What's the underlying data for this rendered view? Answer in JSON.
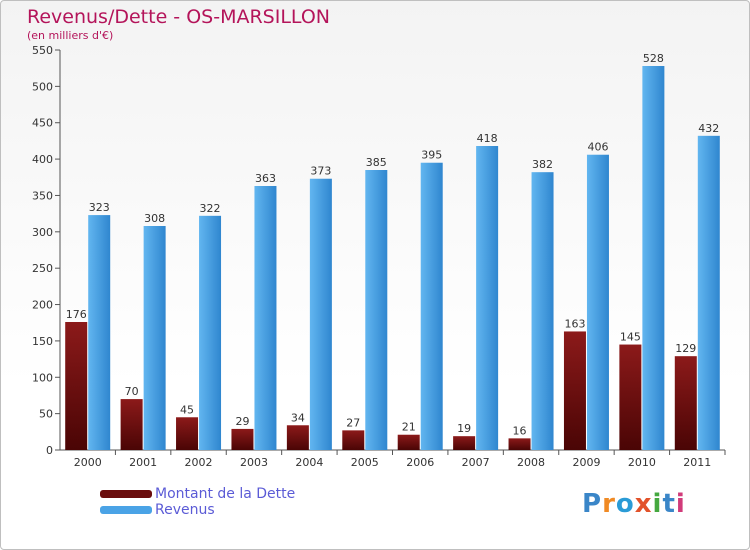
{
  "title": "Revenus/Dette - OS-MARSILLON",
  "subtitle": "(en milliers d'€)",
  "logo": {
    "text": "Proxiti",
    "colors": [
      "#3a86c8",
      "#f08a24",
      "#2a9bd6",
      "#e2522a",
      "#45a83f",
      "#3a86c8",
      "#d13b7a"
    ]
  },
  "legend": {
    "items": [
      {
        "label": "Montant de la Dette",
        "color": "#7a1010"
      },
      {
        "label": "Revenus",
        "color": "#4aa3e6"
      }
    ]
  },
  "chart_data": {
    "type": "bar",
    "categories": [
      "2000",
      "2001",
      "2002",
      "2003",
      "2004",
      "2005",
      "2006",
      "2007",
      "2008",
      "2009",
      "2010",
      "2011"
    ],
    "series": [
      {
        "name": "Montant de la Dette",
        "values": [
          176,
          70,
          45,
          29,
          34,
          27,
          21,
          19,
          16,
          163,
          145,
          129
        ],
        "color": "#7a1010"
      },
      {
        "name": "Revenus",
        "values": [
          323,
          308,
          322,
          363,
          373,
          385,
          395,
          418,
          382,
          406,
          528,
          432
        ],
        "color": "#4aa3e6"
      }
    ],
    "ylim": [
      0,
      550
    ],
    "yticks": [
      0,
      50,
      100,
      150,
      200,
      250,
      300,
      350,
      400,
      450,
      500,
      550
    ],
    "grid": false,
    "legend_position": "bottom-left"
  }
}
